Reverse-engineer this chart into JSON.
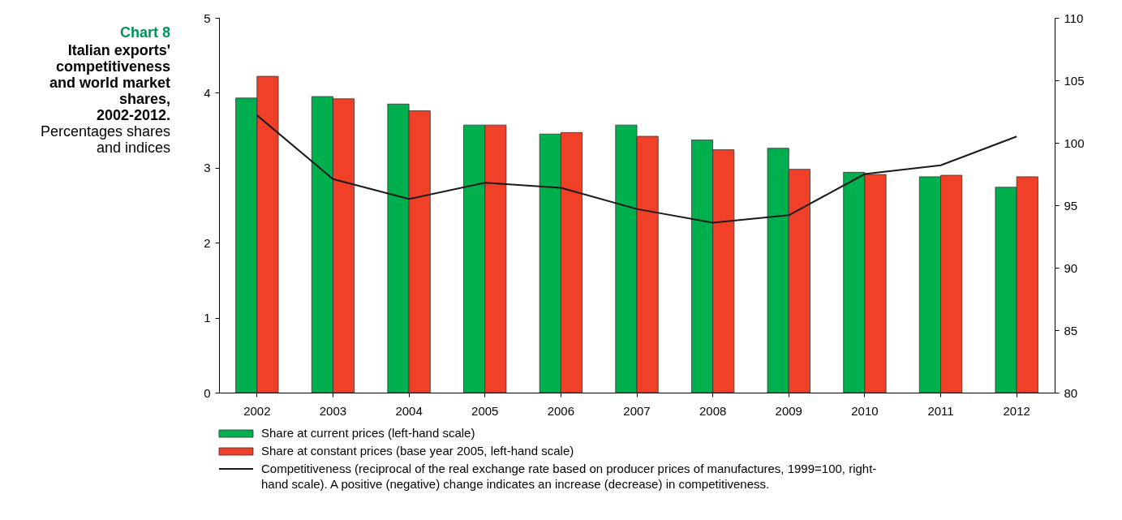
{
  "chart_data": {
    "type": "bar",
    "title": "Chart 8",
    "subtitle": "Italian exports' competitiveness and world market shares, 2002-2012.",
    "annotations": [
      "Percentages shares and indices"
    ],
    "categories": [
      "2002",
      "2003",
      "2004",
      "2005",
      "2006",
      "2007",
      "2008",
      "2009",
      "2010",
      "2011",
      "2012"
    ],
    "series": [
      {
        "name": "Share at current prices (left-hand scale)",
        "color": "#00b04f",
        "values": [
          3.93,
          3.95,
          3.85,
          3.57,
          3.45,
          3.57,
          3.37,
          3.26,
          2.94,
          2.88,
          2.74
        ]
      },
      {
        "name": "Share at constant prices (base year 2005, left-hand scale)",
        "color": "#f04128",
        "values": [
          4.22,
          3.92,
          3.76,
          3.57,
          3.47,
          3.42,
          3.24,
          2.98,
          2.91,
          2.9,
          2.88
        ]
      },
      {
        "name": "Competitiveness (reciprocal of the real exchange rate based on producer prices of manufactures, 1999=100, right-hand scale). A positive (negative) change indicates an increase (decrease) in competitiveness.",
        "type": "line",
        "axis": "y2",
        "color": "#1a1a1a",
        "values": [
          102.2,
          97.1,
          95.5,
          96.8,
          96.4,
          94.7,
          93.6,
          94.2,
          97.5,
          98.2,
          100.5
        ]
      }
    ],
    "ylim": [
      0,
      5
    ],
    "yticks": [
      0,
      1,
      2,
      3,
      4,
      5
    ],
    "y2lim": [
      80,
      110
    ],
    "y2ticks": [
      80,
      85,
      90,
      95,
      100,
      105,
      110
    ],
    "grid": false,
    "legend": "bottom"
  }
}
